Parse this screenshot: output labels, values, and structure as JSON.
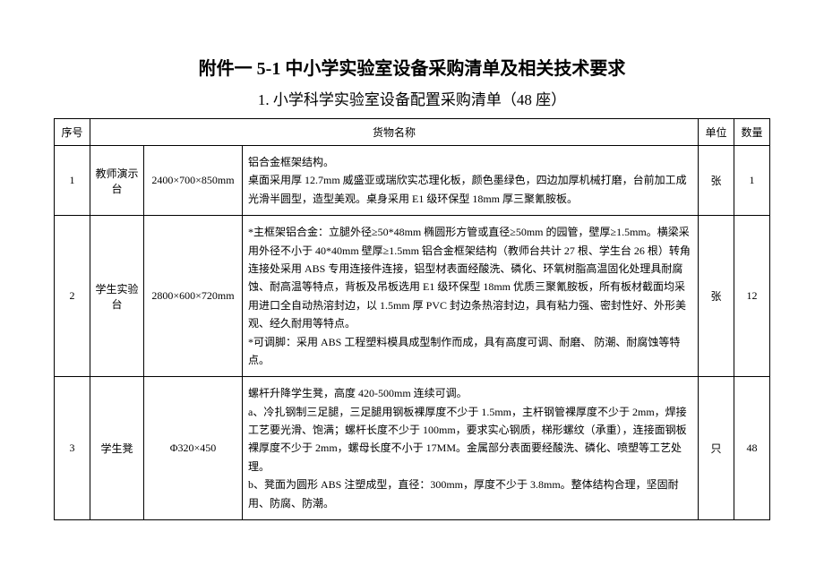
{
  "title": "附件一 5-1 中小学实验室设备采购清单及相关技术要求",
  "subtitle": "1. 小学科学实验室设备配置采购清单（48 座）",
  "table": {
    "headers": {
      "seq": "序号",
      "name": "货物名称",
      "unit": "单位",
      "qty": "数量"
    },
    "rows": [
      {
        "seq": "1",
        "name1": "教师演示台",
        "name2": "2400×700×850mm",
        "desc": "铝合金框架结构。\n桌面采用厚 12.7mm 威盛亚或瑞欣实芯理化板，颜色墨绿色，四边加厚机械打磨，台前加工成光滑半圆型，造型美观。桌身采用 E1 级环保型 18mm 厚三聚氰胺板。",
        "unit": "张",
        "qty": "1"
      },
      {
        "seq": "2",
        "name1": "学生实验台",
        "name2": "2800×600×720mm",
        "desc": "*主框架铝合金：立腿外径≥50*48mm 椭圆形方管或直径≥50mm 的园管，壁厚≥1.5mm。横梁采用外径不小于 40*40mm 壁厚≥1.5mm 铝合金框架结构（教师台共计 27 根、学生台 26 根）转角连接处采用 ABS 专用连接件连接，铝型材表面经酸洗、磷化、环氧树脂高温固化处理具耐腐蚀、耐高温等特点，背板及吊板选用 E1 级环保型 18mm 优质三聚氰胺板，所有板材截面均采用进口全自动热溶封边，以 1.5mm 厚 PVC 封边条热溶封边，具有粘力强、密封性好、外形美观、经久耐用等特点。\n*可调脚：采用 ABS 工程塑料模具成型制作而成，具有高度可调、耐磨、 防潮、耐腐蚀等特点。",
        "unit": "张",
        "qty": "12"
      },
      {
        "seq": "3",
        "name1": "学生凳",
        "name2": "Φ320×450",
        "desc": "螺杆升降学生凳，高度 420-500mm 连续可调。\na、冷扎钢制三足腿，三足腿用钢板裸厚度不少于 1.5mm，主杆钢管裸厚度不少于 2mm，焊接工艺要光滑、饱满；螺杆长度不少于 100mm，要求实心钢质，梯形螺纹（承重），连接面钢板裸厚度不少于 2mm，螺母长度不小于 17MM。金属部分表面要经酸洗、磷化、喷塑等工艺处理。\nb、凳面为圆形 ABS 注塑成型，直径：300mm，厚度不少于 3.8mm。整体结构合理，坚固耐用、防腐、防潮。",
        "unit": "只",
        "qty": "48"
      }
    ]
  }
}
